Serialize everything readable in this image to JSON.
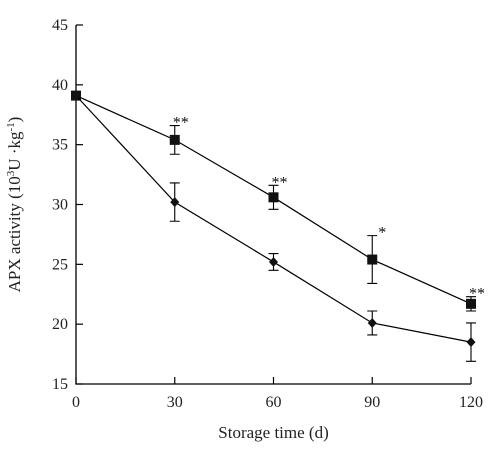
{
  "chart_data": {
    "type": "line",
    "xlabel": "Storage time (d)",
    "ylabel": {
      "prefix": "APX activity (10",
      "sup1": "3",
      "mid": "U ·kg",
      "sup2": "-1",
      "suffix": ")"
    },
    "xlim": [
      0,
      120
    ],
    "ylim": [
      15,
      45
    ],
    "xticks": [
      0,
      30,
      60,
      90,
      120
    ],
    "yticks": [
      15,
      20,
      25,
      30,
      35,
      40,
      45
    ],
    "x": [
      0,
      30,
      60,
      90,
      120
    ],
    "series": [
      {
        "marker": "square",
        "values": [
          39.1,
          35.4,
          30.6,
          25.4,
          21.7
        ],
        "errors": [
          0.3,
          1.2,
          1.0,
          2.0,
          0.6
        ]
      },
      {
        "marker": "diamond",
        "values": [
          39.1,
          30.2,
          25.2,
          20.1,
          18.5
        ],
        "errors": [
          0.3,
          1.6,
          0.7,
          1.0,
          1.6
        ]
      }
    ],
    "annotations": [
      {
        "x": 30,
        "y": 36.6,
        "text": "**"
      },
      {
        "x": 60,
        "y": 31.6,
        "text": "**"
      },
      {
        "x": 90,
        "y": 27.4,
        "text": "*"
      },
      {
        "x": 120,
        "y": 22.3,
        "text": "**"
      }
    ],
    "grid": false,
    "legend": "none"
  }
}
